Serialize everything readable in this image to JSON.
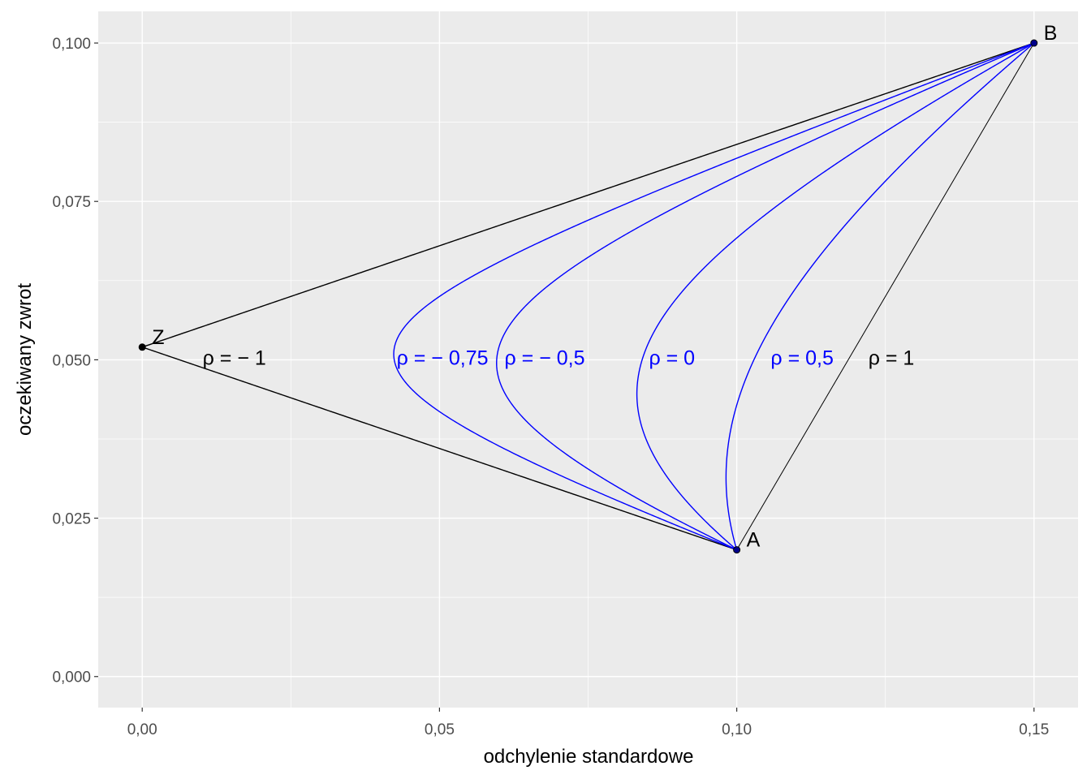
{
  "chart_data": {
    "type": "line",
    "xlabel": "odchylenie standardowe",
    "ylabel": "oczekiwany zwrot",
    "xlim": [
      -0.0074,
      0.1574
    ],
    "ylim": [
      -0.0049,
      0.105
    ],
    "x_ticks": [
      0,
      0.05,
      0.1,
      0.15
    ],
    "x_tick_labels": [
      "0,00",
      "0,05",
      "0,10",
      "0,15"
    ],
    "y_ticks": [
      0,
      0.025,
      0.05,
      0.075,
      0.1
    ],
    "y_tick_labels": [
      "0,000",
      "0,025",
      "0,050",
      "0,075",
      "0,100"
    ],
    "grid": true,
    "background": "#EBEBEB",
    "points": [
      {
        "label": "A",
        "sd": 0.1,
        "ret": 0.02
      },
      {
        "label": "B",
        "sd": 0.15,
        "ret": 0.1
      },
      {
        "label": "Z",
        "sd": 0.0,
        "ret": 0.052
      }
    ],
    "series": [
      {
        "rho": -1,
        "color": "#000000",
        "label": "ρ = − 1",
        "label_at": [
          0.0155,
          0.05
        ]
      },
      {
        "rho": -0.75,
        "color": "#0000FF",
        "label": "ρ = − 0,75",
        "label_at": [
          0.0505,
          0.05
        ]
      },
      {
        "rho": -0.5,
        "color": "#0000FF",
        "label": "ρ = − 0,5",
        "label_at": [
          0.0677,
          0.05
        ]
      },
      {
        "rho": 0,
        "color": "#0000FF",
        "label": "ρ = 0",
        "label_at": [
          0.0891,
          0.05
        ]
      },
      {
        "rho": 0.5,
        "color": "#0000FF",
        "label": "ρ = 0,5",
        "label_at": [
          0.111,
          0.05
        ]
      },
      {
        "rho": 1,
        "color": "#000000",
        "label": "ρ = 1",
        "label_at": [
          0.126,
          0.05
        ]
      }
    ]
  }
}
